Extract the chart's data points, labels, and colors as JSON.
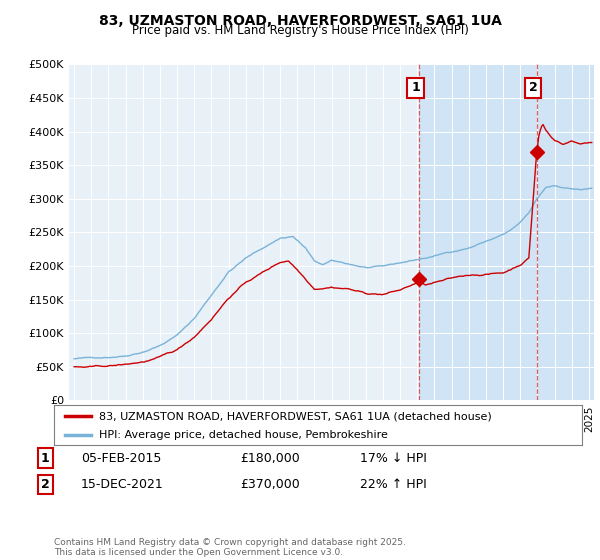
{
  "title_line1": "83, UZMASTON ROAD, HAVERFORDWEST, SA61 1UA",
  "title_line2": "Price paid vs. HM Land Registry's House Price Index (HPI)",
  "ylim": [
    0,
    500000
  ],
  "yticks": [
    0,
    50000,
    100000,
    150000,
    200000,
    250000,
    300000,
    350000,
    400000,
    450000,
    500000
  ],
  "ytick_labels": [
    "£0",
    "£50K",
    "£100K",
    "£150K",
    "£200K",
    "£250K",
    "£300K",
    "£350K",
    "£400K",
    "£450K",
    "£500K"
  ],
  "xlim_start": 1994.7,
  "xlim_end": 2025.3,
  "plot_bg_color": "#e8f0f8",
  "highlight_color": "#d0e4f5",
  "line_red": "#cc0000",
  "line_blue": "#7ab3d8",
  "vline_color": "#dd4444",
  "sale1_x": 2015.1,
  "sale1_y": 180000,
  "sale2_x": 2021.95,
  "sale2_y": 370000,
  "annot1_label": "1",
  "annot2_label": "2",
  "legend_label1": "83, UZMASTON ROAD, HAVERFORDWEST, SA61 1UA (detached house)",
  "legend_label2": "HPI: Average price, detached house, Pembrokeshire",
  "fn1_label": "1",
  "fn1_date": "05-FEB-2015",
  "fn1_price": "£180,000",
  "fn1_hpi": "17% ↓ HPI",
  "fn2_label": "2",
  "fn2_date": "15-DEC-2021",
  "fn2_price": "£370,000",
  "fn2_hpi": "22% ↑ HPI",
  "copyright_text": "Contains HM Land Registry data © Crown copyright and database right 2025.\nThis data is licensed under the Open Government Licence v3.0."
}
